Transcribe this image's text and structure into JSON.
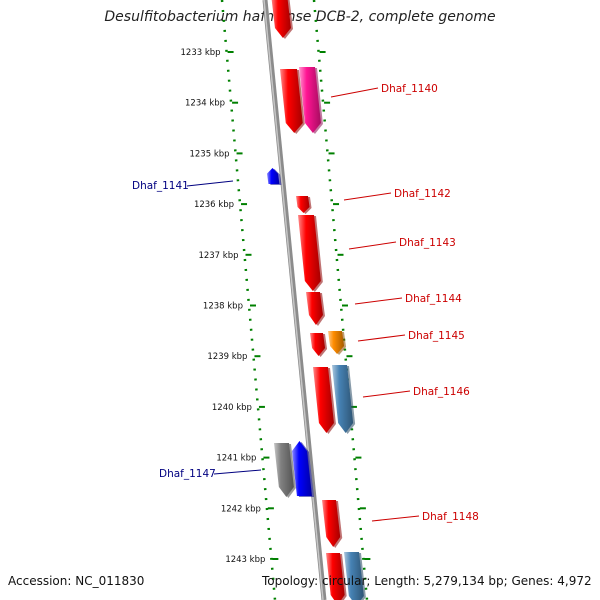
{
  "title": "Desulfitobacterium hafniense DCB-2, complete genome",
  "footer": {
    "accession": "Accession: NC_011830",
    "topology": "Topology: circular; Length: 5,279,134 bp; Genes: 4,972"
  },
  "colors": {
    "forward": "#ff0000",
    "reverse": "#0000ff",
    "magenta": "#ff1493",
    "orange": "#ff8c00",
    "steelblue": "#4682b4",
    "gray": "#808080",
    "backbone": "#8c8c8c",
    "dots": "#008000",
    "ticks": "#008000"
  },
  "scale": {
    "ticks": [
      "1233 kbp",
      "1234 kbp",
      "1235 kbp",
      "1236 kbp",
      "1237 kbp",
      "1238 kbp",
      "1239 kbp",
      "1240 kbp",
      "1241 kbp",
      "1242 kbp",
      "1243 kbp"
    ]
  },
  "genes": [
    {
      "label": "Dhaf_1140",
      "strand": "forward"
    },
    {
      "label": "Dhaf_1141",
      "strand": "reverse"
    },
    {
      "label": "Dhaf_1142",
      "strand": "forward"
    },
    {
      "label": "Dhaf_1143",
      "strand": "forward"
    },
    {
      "label": "Dhaf_1144",
      "strand": "forward"
    },
    {
      "label": "Dhaf_1145",
      "strand": "forward"
    },
    {
      "label": "Dhaf_1146",
      "strand": "forward"
    },
    {
      "label": "Dhaf_1147",
      "strand": "reverse"
    },
    {
      "label": "Dhaf_1148",
      "strand": "forward"
    }
  ]
}
